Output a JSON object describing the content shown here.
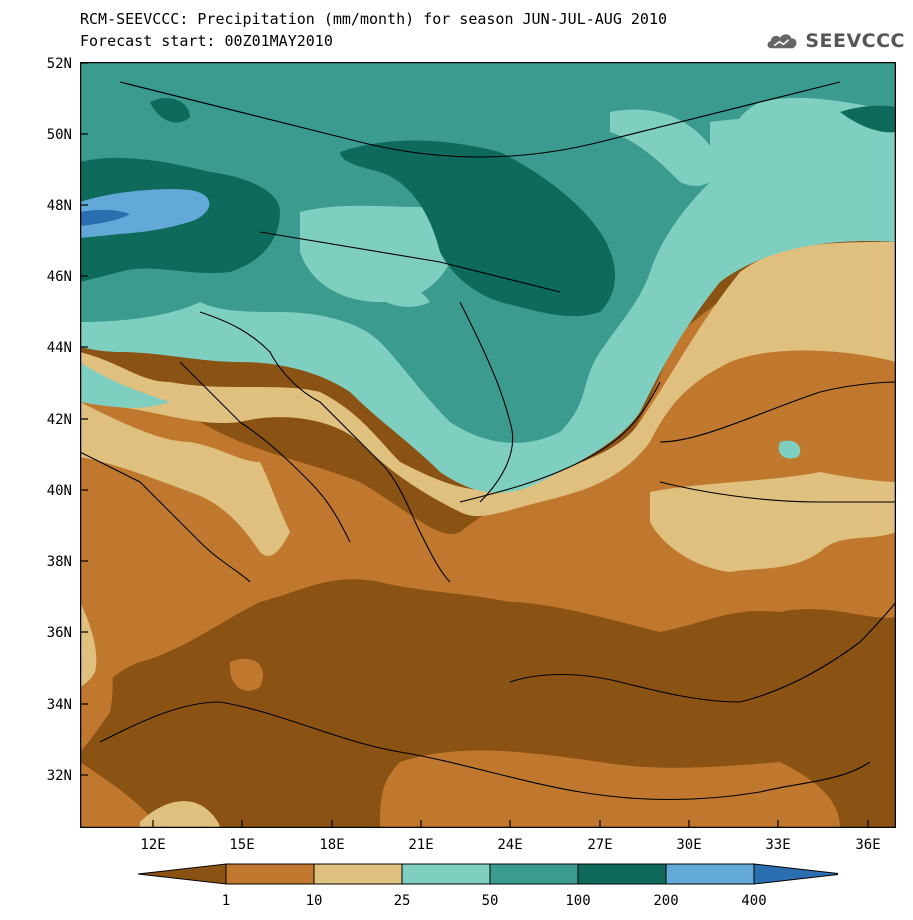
{
  "title": {
    "line1": "RCM-SEEVCCC: Precipitation (mm/month) for season JUN-JUL-AUG 2010",
    "line2": "Forecast start: 00Z01MAY2010"
  },
  "logo": {
    "text": "SEEVCCC",
    "icon": "cloud-icon"
  },
  "map": {
    "variable": "Precipitation",
    "units": "mm/month",
    "season": "JUN-JUL-AUG 2010",
    "lat_labels": [
      "52N",
      "50N",
      "48N",
      "46N",
      "44N",
      "42N",
      "40N",
      "38N",
      "36N",
      "34N",
      "32N"
    ],
    "lon_labels": [
      "12E",
      "15E",
      "18E",
      "21E",
      "24E",
      "27E",
      "30E",
      "33E",
      "36E"
    ],
    "lat_range": [
      30.5,
      52
    ],
    "lon_range": [
      9.5,
      37.5
    ]
  },
  "legend": {
    "levels": [
      "1",
      "10",
      "25",
      "50",
      "100",
      "200",
      "400"
    ],
    "colors": [
      "#8a5213",
      "#c0782e",
      "#dfc07e",
      "#7fcfc0",
      "#3a9b8e",
      "#0e6b5c",
      "#63a9d8",
      "#2b6fb0"
    ]
  }
}
